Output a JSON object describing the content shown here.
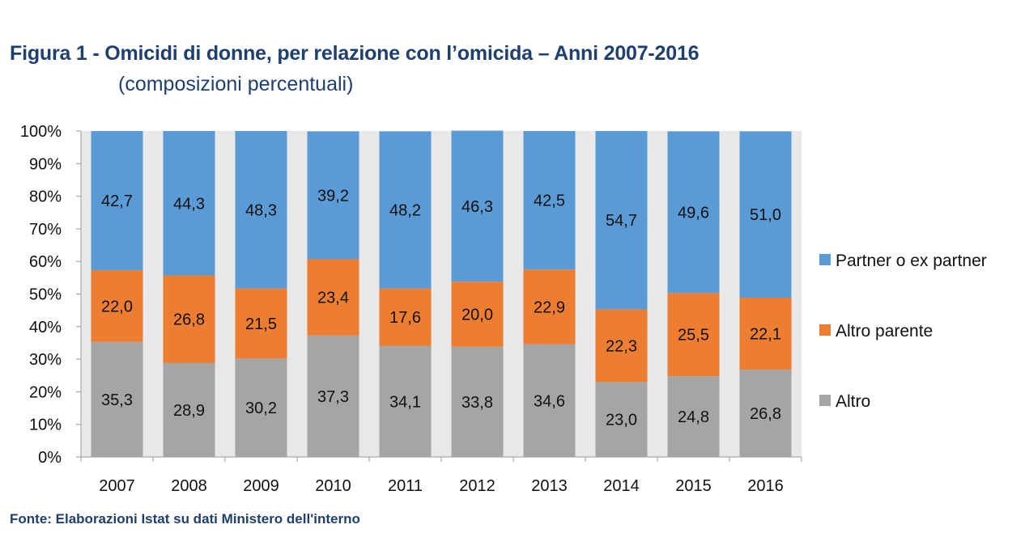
{
  "header": {
    "title": "Figura 1 - Omicidi di donne, per relazione con l’omicida – Anni 2007-2016",
    "subtitle": "(composizioni percentuali)"
  },
  "footer": {
    "source": "Fonte: Elaborazioni Istat su dati Ministero dell'interno"
  },
  "chart_data": {
    "type": "bar",
    "stacked": true,
    "percent": true,
    "title": "Figura 1 - Omicidi di donne, per relazione con l’omicida – Anni 2007-2016",
    "subtitle": "(composizioni percentuali)",
    "xlabel": "",
    "ylabel": "",
    "categories": [
      "2007",
      "2008",
      "2009",
      "2010",
      "2011",
      "2012",
      "2013",
      "2014",
      "2015",
      "2016"
    ],
    "ylim": [
      0,
      100
    ],
    "yticks": [
      "0%",
      "10%",
      "20%",
      "30%",
      "40%",
      "50%",
      "60%",
      "70%",
      "80%",
      "90%",
      "100%"
    ],
    "grid": false,
    "legend_position": "right",
    "series": [
      {
        "name": "Altro",
        "color": "#a5a5a5",
        "values": [
          35.3,
          28.9,
          30.2,
          37.3,
          34.1,
          33.8,
          34.6,
          23.0,
          24.8,
          26.8
        ],
        "labels": [
          "35,3",
          "28,9",
          "30,2",
          "37,3",
          "34,1",
          "33,8",
          "34,6",
          "23,0",
          "24,8",
          "26,8"
        ]
      },
      {
        "name": "Altro parente",
        "color": "#ed7d31",
        "values": [
          22.0,
          26.8,
          21.5,
          23.4,
          17.6,
          20.0,
          22.9,
          22.3,
          25.5,
          22.1
        ],
        "labels": [
          "22,0",
          "26,8",
          "21,5",
          "23,4",
          "17,6",
          "20,0",
          "22,9",
          "22,3",
          "25,5",
          "22,1"
        ]
      },
      {
        "name": "Partner o ex partner",
        "color": "#5b9bd5",
        "values": [
          42.7,
          44.3,
          48.3,
          39.2,
          48.2,
          46.3,
          42.5,
          54.7,
          49.6,
          51.0
        ],
        "labels": [
          "42,7",
          "44,3",
          "48,3",
          "39,2",
          "48,2",
          "46,3",
          "42,5",
          "54,7",
          "49,6",
          "51,0"
        ]
      }
    ],
    "legend_order": [
      "Partner o ex partner",
      "Altro parente",
      "Altro"
    ],
    "plot_background": "#e8e8e8"
  }
}
